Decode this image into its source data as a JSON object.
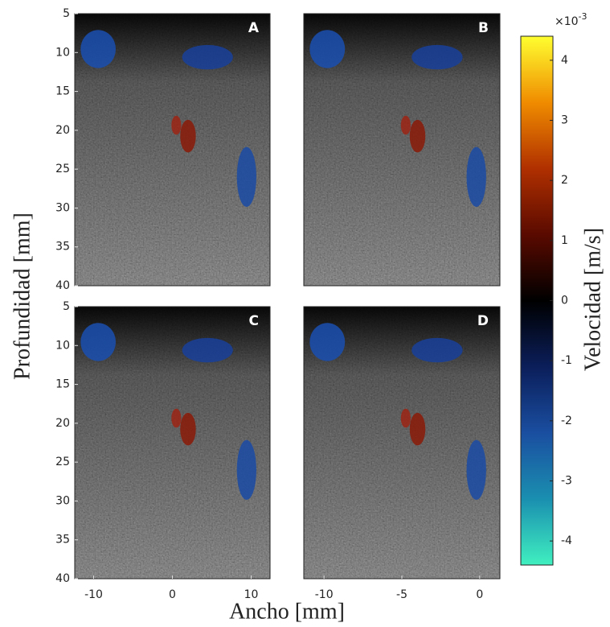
{
  "chart_data": [
    {
      "type": "image",
      "label": "A",
      "xlim": [
        -12.4,
        12.4
      ],
      "ylim": [
        40,
        5
      ],
      "yticks": [
        5,
        10,
        15,
        20,
        25,
        30,
        35,
        40
      ]
    },
    {
      "type": "image",
      "label": "B",
      "xlim": [
        -11.3,
        1.3
      ],
      "ylim": [
        40,
        5
      ]
    },
    {
      "type": "image",
      "label": "C",
      "xlim": [
        -12.4,
        12.4
      ],
      "ylim": [
        40,
        5
      ],
      "xticks": [
        -10,
        0,
        10
      ],
      "yticks": [
        5,
        10,
        15,
        20,
        25,
        30,
        35,
        40
      ]
    },
    {
      "type": "image",
      "label": "D",
      "xlim": [
        -11.3,
        1.3
      ],
      "ylim": [
        40,
        5
      ],
      "xticks": [
        -10,
        -5,
        0
      ]
    },
    {
      "type": "colorbar",
      "ylim": [
        -4.4,
        4.4
      ],
      "yticks": [
        4,
        3,
        2,
        1,
        0,
        -1,
        -2,
        -3,
        -4
      ],
      "offset_base": "×10",
      "offset_exponent": "-3",
      "ylabel": "Velocidad [m/s]",
      "colormap": [
        "#40f0c0",
        "#1a8fb0",
        "#1a4ea0",
        "#0b1e5a",
        "#000000",
        "#5a0a00",
        "#b03000",
        "#f08c00",
        "#ffff30"
      ]
    }
  ],
  "labels": {
    "ylabel": "Profundidad [mm]",
    "xlabel": "Ancho [mm]"
  }
}
